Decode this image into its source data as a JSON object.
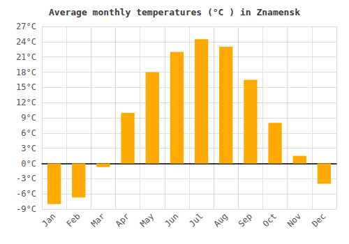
{
  "chart_data": {
    "type": "bar",
    "title": "Average monthly temperatures (°C ) in Znamensk",
    "categories": [
      "Jan",
      "Feb",
      "Mar",
      "Apr",
      "May",
      "Jun",
      "Jul",
      "Aug",
      "Sep",
      "Oct",
      "Nov",
      "Dec"
    ],
    "values": [
      -8,
      -6.7,
      -0.7,
      10,
      18,
      22,
      24.5,
      23,
      16.5,
      8,
      1.5,
      -4
    ],
    "color": "#FFAA00",
    "ylim": [
      -9,
      27
    ],
    "yticks": [
      {
        "value": -9,
        "label": "-9°C"
      },
      {
        "value": -6,
        "label": "-6°C"
      },
      {
        "value": -3,
        "label": "-3°C"
      },
      {
        "value": 0,
        "label": "0°C"
      },
      {
        "value": 3,
        "label": "3°C"
      },
      {
        "value": 6,
        "label": "6°C"
      },
      {
        "value": 9,
        "label": "9°C"
      },
      {
        "value": 12,
        "label": "12°C"
      },
      {
        "value": 15,
        "label": "15°C"
      },
      {
        "value": 18,
        "label": "18°C"
      },
      {
        "value": 21,
        "label": "21°C"
      },
      {
        "value": 24,
        "label": "24°C"
      },
      {
        "value": 27,
        "label": "27°C"
      }
    ],
    "grid": true
  }
}
